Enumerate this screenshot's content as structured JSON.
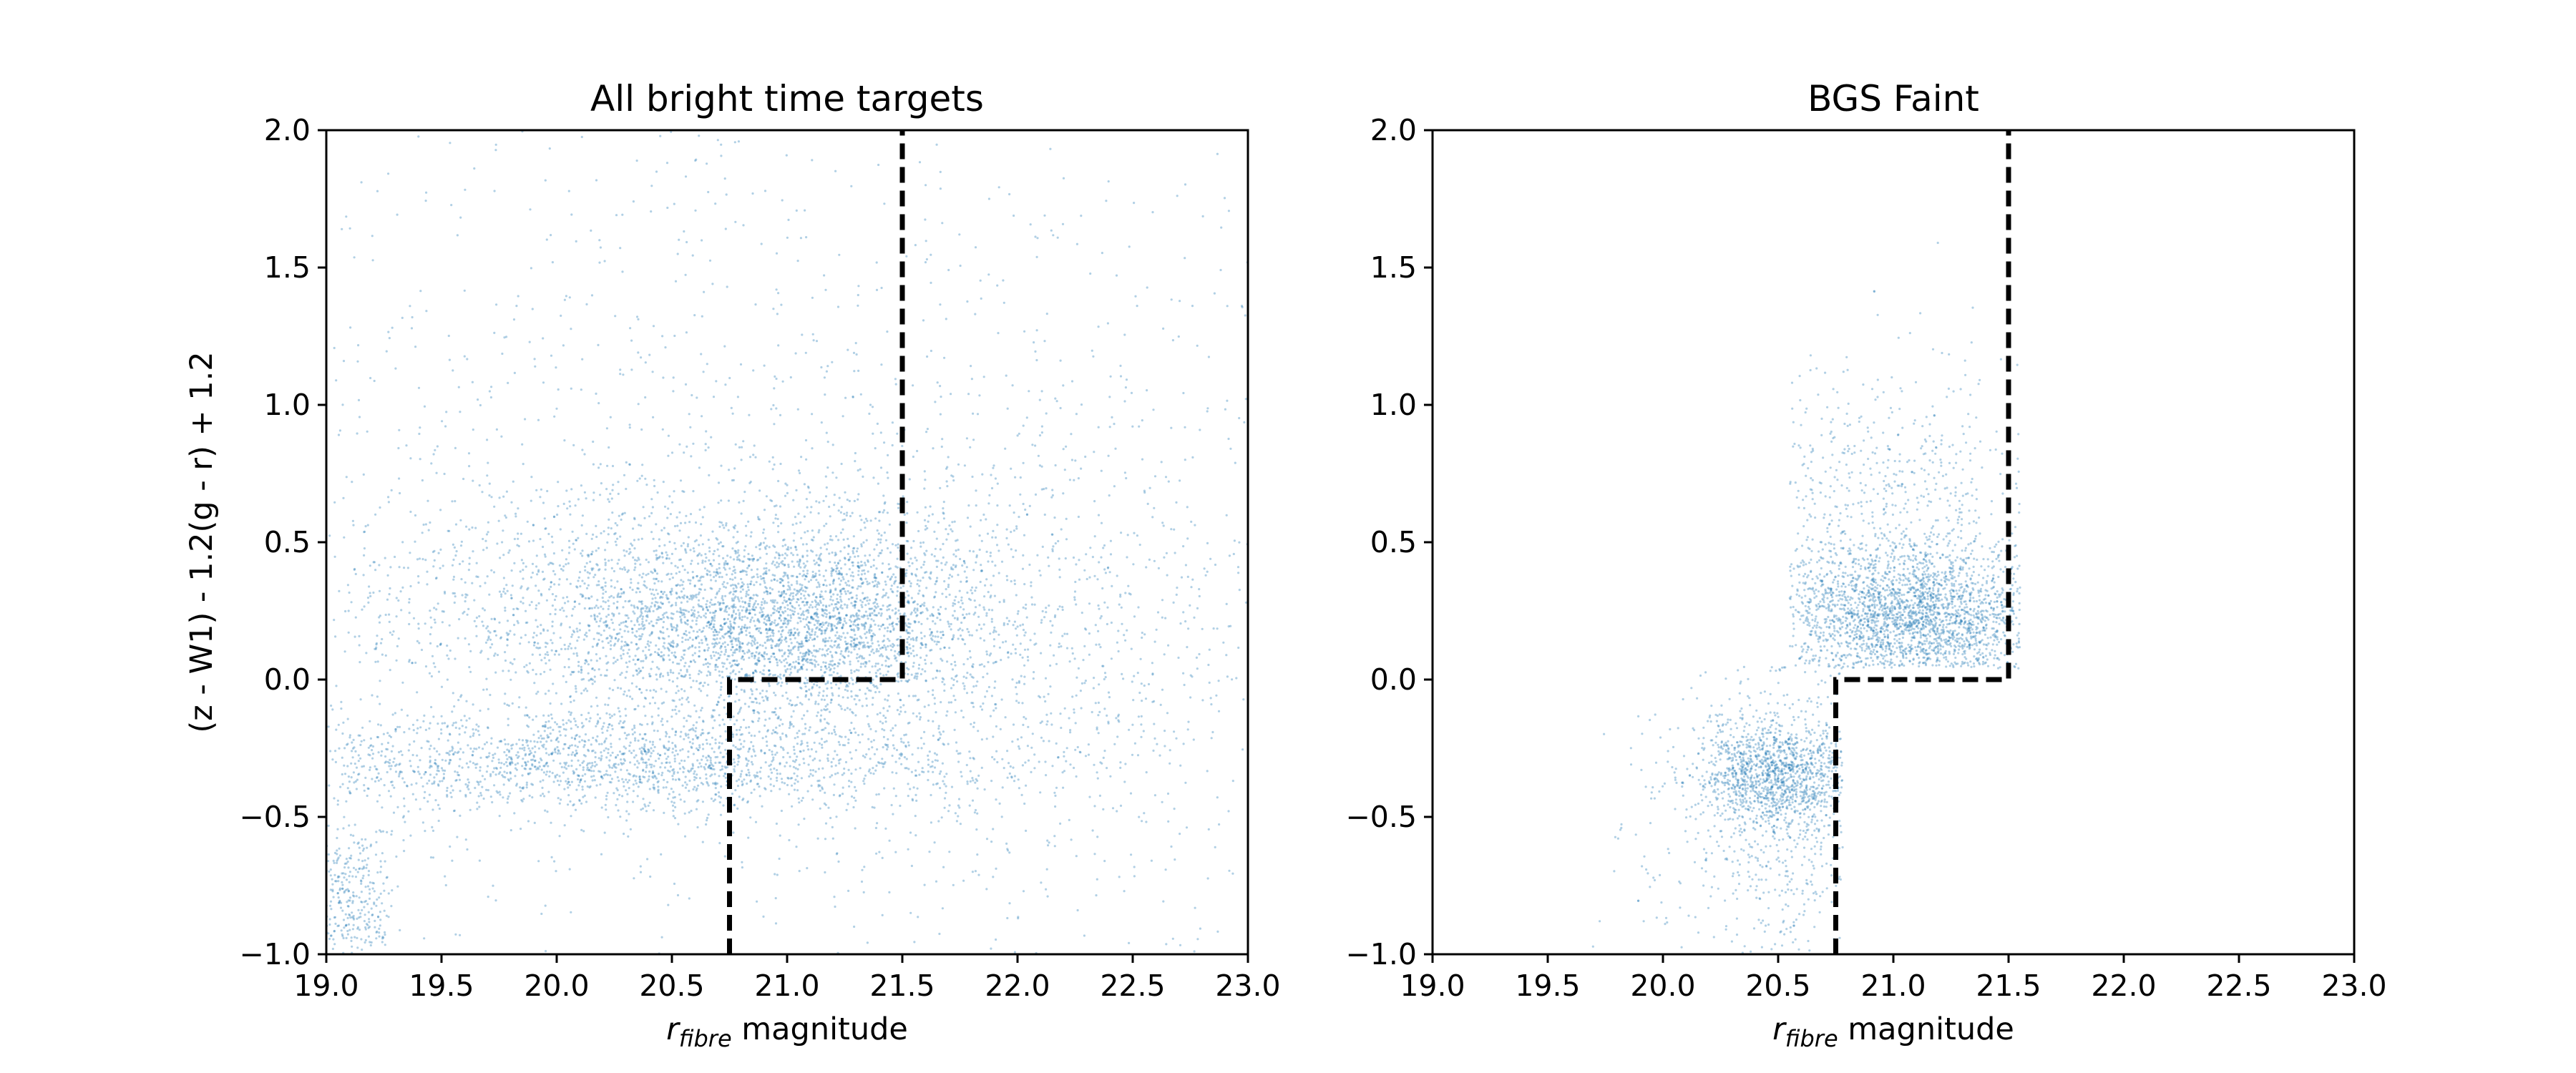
{
  "chart_data": [
    {
      "type": "scatter",
      "title": "All bright time targets",
      "xlabel": {
        "main": "r",
        "subscript": "fibre",
        "suffix": " magnitude"
      },
      "ylabel": "(z - W1) - 1.2(g - r) + 1.2",
      "xlim": [
        19.0,
        23.0
      ],
      "ylim": [
        -1.0,
        2.0
      ],
      "xticks": [
        "19.0",
        "19.5",
        "20.0",
        "20.5",
        "21.0",
        "21.5",
        "22.0",
        "22.5",
        "23.0"
      ],
      "yticks": [
        "−1.0",
        "−0.5",
        "0.0",
        "0.5",
        "1.0",
        "1.5",
        "2.0"
      ],
      "point_color": "#1f77b4",
      "density": [
        {
          "center": [
            21.0,
            0.2
          ],
          "spread": [
            0.45,
            0.17
          ],
          "weight": 0.28
        },
        {
          "center": [
            20.35,
            0.25
          ],
          "spread": [
            0.8,
            0.22
          ],
          "weight": 0.16
        },
        {
          "center": [
            20.2,
            -0.3
          ],
          "spread": [
            0.85,
            0.09
          ],
          "weight": 0.2
        },
        {
          "center": [
            19.1,
            -0.8
          ],
          "spread": [
            0.1,
            0.14
          ],
          "weight": 0.04
        },
        {
          "center": [
            21.9,
            0.1
          ],
          "spread": [
            0.7,
            0.45
          ],
          "weight": 0.1
        },
        {
          "center": [
            21.0,
            0.5
          ],
          "spread": [
            1.6,
            0.9
          ],
          "weight": 0.22
        }
      ],
      "boundary": [
        {
          "x": 20.75,
          "y": -1.0
        },
        {
          "x": 20.75,
          "y": 0.0
        },
        {
          "x": 21.5,
          "y": 0.0
        },
        {
          "x": 21.5,
          "y": 2.0
        }
      ]
    },
    {
      "type": "scatter",
      "title": "BGS Faint",
      "xlabel": {
        "main": "r",
        "subscript": "fibre",
        "suffix": " magnitude"
      },
      "ylabel": "",
      "xlim": [
        19.0,
        23.0
      ],
      "ylim": [
        -1.0,
        2.0
      ],
      "xticks": [
        "19.0",
        "19.5",
        "20.0",
        "20.5",
        "21.0",
        "21.5",
        "22.0",
        "22.5",
        "23.0"
      ],
      "yticks": [
        "−1.0",
        "−0.5",
        "0.0",
        "0.5",
        "1.0",
        "1.5",
        "2.0"
      ],
      "point_color": "#1f77b4",
      "density": [
        {
          "center": [
            21.1,
            0.22
          ],
          "spread": [
            0.3,
            0.13
          ],
          "weight": 0.45
        },
        {
          "center": [
            20.95,
            0.45
          ],
          "spread": [
            0.35,
            0.35
          ],
          "weight": 0.2
        },
        {
          "center": [
            20.5,
            -0.35
          ],
          "spread": [
            0.18,
            0.1
          ],
          "weight": 0.25
        },
        {
          "center": [
            20.5,
            -0.6
          ],
          "spread": [
            0.3,
            0.25
          ],
          "weight": 0.1
        }
      ],
      "boundary": [
        {
          "x": 20.75,
          "y": -1.0
        },
        {
          "x": 20.75,
          "y": 0.0
        },
        {
          "x": 21.5,
          "y": 0.0
        },
        {
          "x": 21.5,
          "y": 2.0
        }
      ]
    }
  ]
}
